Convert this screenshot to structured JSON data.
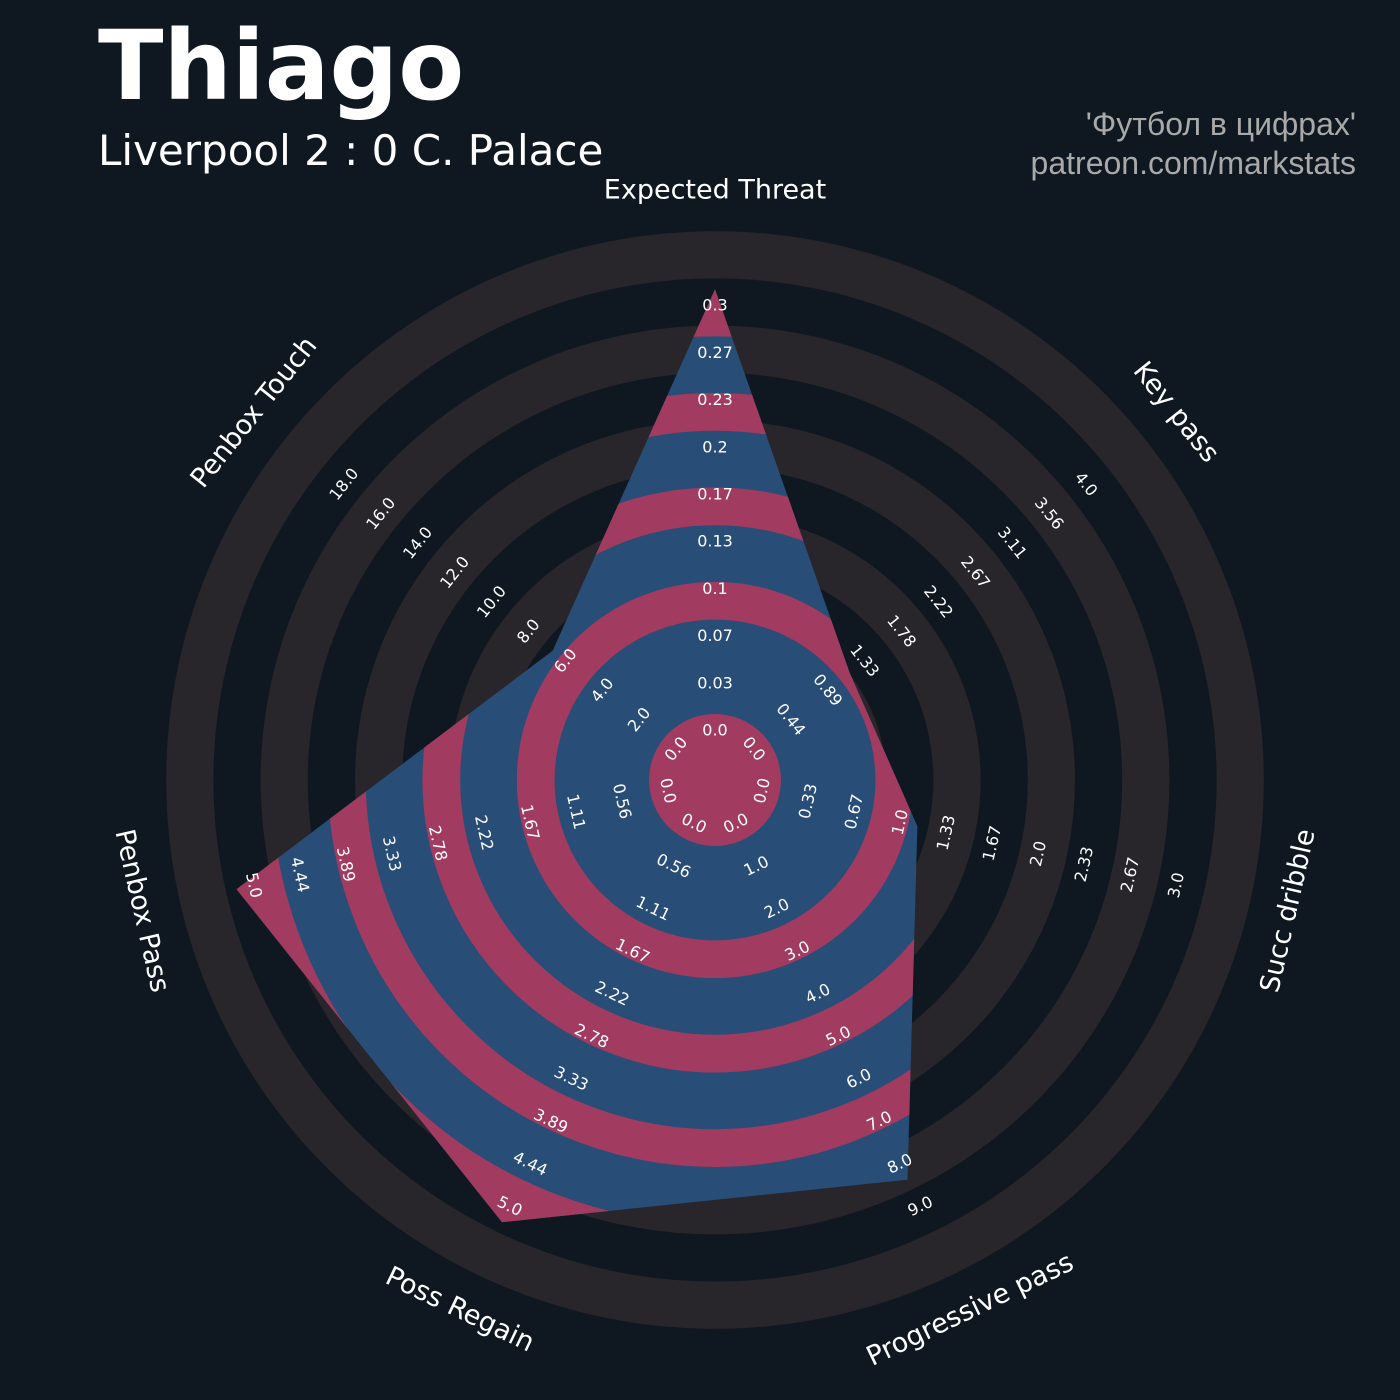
{
  "header": {
    "title": "Thiago",
    "subtitle": "Liverpool 2 : 0 C. Palace",
    "credit_line1": "'Футбол в цифрах'",
    "credit_line2": "patreon.com/markstats"
  },
  "colors": {
    "background": "#0f1820",
    "ring_dark": "#28252b",
    "ring_bg": "#0f1820",
    "shape_blue": "#284d77",
    "shape_pink": "#a13b60",
    "text": "#ffffff"
  },
  "chart_data": {
    "type": "radar",
    "title": "Thiago",
    "subtitle": "Liverpool 2 : 0 C. Palace",
    "rings": 5,
    "params": [
      {
        "label": "Expected Threat",
        "min": 0.0,
        "max": 0.3,
        "value": 0.3,
        "ticks": [
          "0.0",
          "0.03",
          "0.07",
          "0.1",
          "0.13",
          "0.17",
          "0.2",
          "0.23",
          "0.27",
          "0.3"
        ]
      },
      {
        "label": "Key pass",
        "min": 0.0,
        "max": 4.0,
        "value": 1.0,
        "ticks": [
          "0.0",
          "0.44",
          "0.89",
          "1.33",
          "1.78",
          "2.22",
          "2.67",
          "3.11",
          "3.56",
          "4.0"
        ]
      },
      {
        "label": "Succ dribble",
        "min": 0.0,
        "max": 3.0,
        "value": 1.0,
        "ticks": [
          "0.0",
          "0.33",
          "0.67",
          "1.0",
          "1.33",
          "1.67",
          "2.0",
          "2.33",
          "2.67",
          "3.0"
        ]
      },
      {
        "label": "Progressive pass",
        "min": 0.0,
        "max": 9.0,
        "value": 8.0,
        "ticks": [
          "0.0",
          "1.0",
          "2.0",
          "3.0",
          "4.0",
          "5.0",
          "6.0",
          "7.0",
          "8.0",
          "9.0"
        ]
      },
      {
        "label": "Poss Regain",
        "min": 0.0,
        "max": 5.0,
        "value": 5.0,
        "ticks": [
          "0.0",
          "0.56",
          "1.11",
          "1.67",
          "2.22",
          "2.78",
          "3.33",
          "3.89",
          "4.44",
          "5.0"
        ]
      },
      {
        "label": "Penbox Pass",
        "min": 0.0,
        "max": 5.0,
        "value": 5.0,
        "ticks": [
          "0.0",
          "0.56",
          "1.11",
          "1.67",
          "2.22",
          "2.78",
          "3.33",
          "3.89",
          "4.44",
          "5.0"
        ]
      },
      {
        "label": "Penbox Touch",
        "min": 0.0,
        "max": 18.0,
        "value": 6.0,
        "ticks": [
          "0.0",
          "2.0",
          "4.0",
          "6.0",
          "8.0",
          "10.0",
          "12.0",
          "14.0",
          "16.0",
          "18.0"
        ]
      }
    ]
  }
}
